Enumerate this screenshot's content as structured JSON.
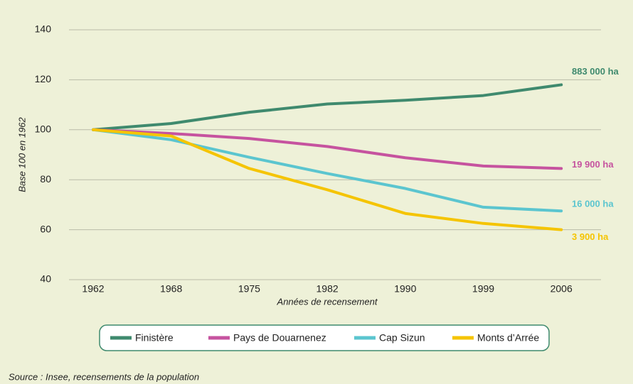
{
  "chart_data": {
    "type": "line",
    "y_label": "Base 100 en 1962",
    "x_label": "Années de recensement",
    "source": "Source : Insee, recensements de la population",
    "categories": [
      "1962",
      "1968",
      "1975",
      "1982",
      "1990",
      "1999",
      "2006"
    ],
    "ylim": [
      40,
      140
    ],
    "yticks": [
      40,
      60,
      80,
      100,
      120,
      140
    ],
    "grid": true,
    "series": [
      {
        "name": "Finistère",
        "color": "#3f8a6e",
        "values": [
          100,
          102.5,
          107,
          110.3,
          111.8,
          113.7,
          118
        ],
        "end_label": "883 000 ha"
      },
      {
        "name": "Pays de Douarnenez",
        "color": "#c6539f",
        "values": [
          100,
          98.5,
          96.5,
          93.3,
          88.8,
          85.5,
          84.5
        ],
        "end_label": "19 900 ha"
      },
      {
        "name": "Cap Sizun",
        "color": "#5bc5cf",
        "values": [
          100,
          96,
          89,
          82.5,
          76.5,
          69,
          67.5
        ],
        "end_label": "16 000 ha"
      },
      {
        "name": "Monts d’Arrée",
        "color": "#f5c400",
        "values": [
          100,
          97.5,
          84.5,
          76,
          66.5,
          62.5,
          60
        ],
        "end_label": "3 900 ha"
      }
    ]
  }
}
